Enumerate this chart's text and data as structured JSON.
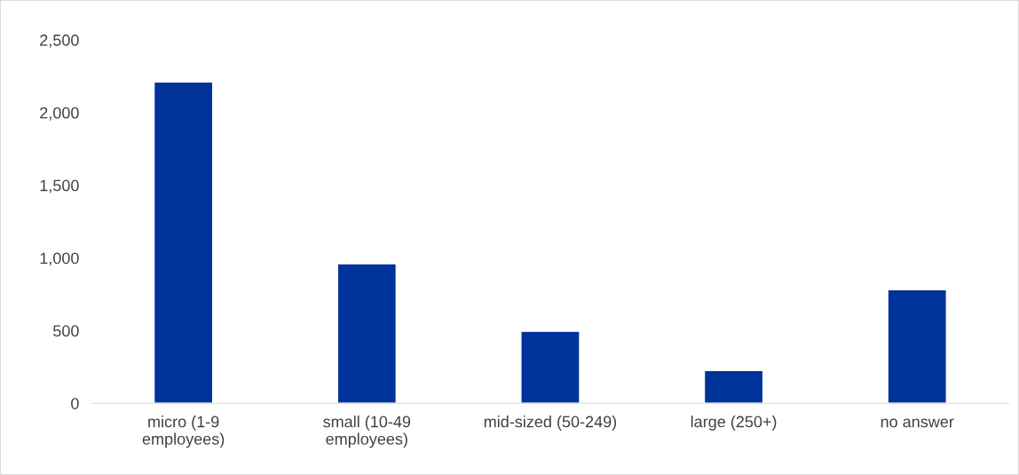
{
  "chart_data": {
    "type": "bar",
    "categories": [
      "micro (1-9\nemployees)",
      "small (10-49\nemployees)",
      "mid-sized (50-249)",
      "large (250+)",
      "no answer"
    ],
    "values": [
      2210,
      960,
      495,
      226,
      782
    ],
    "color": "#00339a",
    "ylim": [
      0,
      2500
    ],
    "yticks": [
      0,
      500,
      {
        "value": 1000,
        "label": "1,000"
      },
      {
        "value": 1500,
        "label": "1,500"
      },
      {
        "value": 2000,
        "label": "2,000"
      },
      {
        "value": 2500,
        "label": "2,500"
      }
    ],
    "grid": false
  }
}
